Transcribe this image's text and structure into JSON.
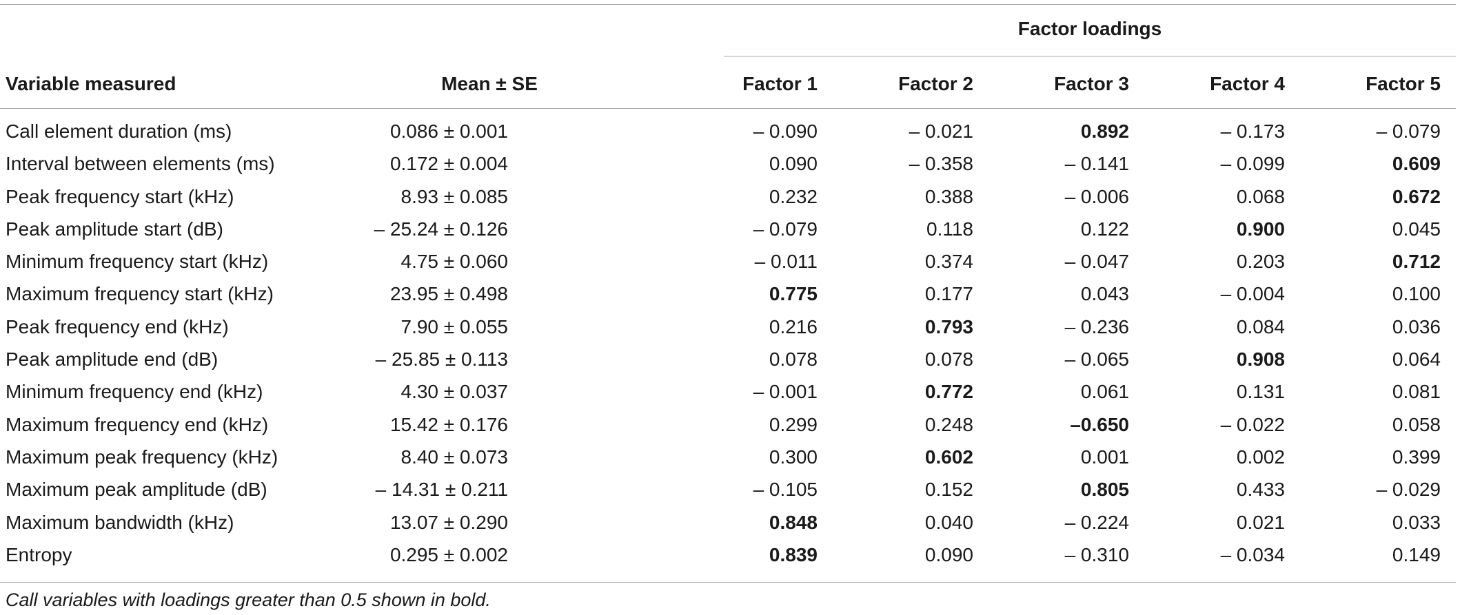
{
  "table": {
    "group_header": "Factor loadings",
    "headers": {
      "variable": "Variable measured",
      "mean": "Mean ± SE",
      "factors": [
        "Factor 1",
        "Factor 2",
        "Factor 3",
        "Factor 4",
        "Factor 5"
      ]
    },
    "rows": [
      {
        "variable": "Call element duration (ms)",
        "mean": "0.086 ± 0.001",
        "loadings": [
          "– 0.090",
          "– 0.021",
          "0.892",
          "– 0.173",
          "– 0.079"
        ],
        "bold": [
          false,
          false,
          true,
          false,
          false
        ]
      },
      {
        "variable": "Interval between elements (ms)",
        "mean": "0.172 ± 0.004",
        "loadings": [
          "0.090",
          "– 0.358",
          "– 0.141",
          "– 0.099",
          "0.609"
        ],
        "bold": [
          false,
          false,
          false,
          false,
          true
        ]
      },
      {
        "variable": "Peak frequency start (kHz)",
        "mean": "8.93 ± 0.085",
        "loadings": [
          "0.232",
          "0.388",
          "– 0.006",
          "0.068",
          "0.672"
        ],
        "bold": [
          false,
          false,
          false,
          false,
          true
        ]
      },
      {
        "variable": "Peak amplitude start (dB)",
        "mean": "– 25.24 ± 0.126",
        "loadings": [
          "– 0.079",
          "0.118",
          "0.122",
          "0.900",
          "0.045"
        ],
        "bold": [
          false,
          false,
          false,
          true,
          false
        ]
      },
      {
        "variable": "Minimum frequency start (kHz)",
        "mean": "4.75 ± 0.060",
        "loadings": [
          "– 0.011",
          "0.374",
          "– 0.047",
          "0.203",
          "0.712"
        ],
        "bold": [
          false,
          false,
          false,
          false,
          true
        ]
      },
      {
        "variable": "Maximum frequency start (kHz)",
        "mean": "23.95 ± 0.498",
        "loadings": [
          "0.775",
          "0.177",
          "0.043",
          "– 0.004",
          "0.100"
        ],
        "bold": [
          true,
          false,
          false,
          false,
          false
        ]
      },
      {
        "variable": "Peak frequency end (kHz)",
        "mean": "7.90 ± 0.055",
        "loadings": [
          "0.216",
          "0.793",
          "– 0.236",
          "0.084",
          "0.036"
        ],
        "bold": [
          false,
          true,
          false,
          false,
          false
        ]
      },
      {
        "variable": "Peak amplitude end (dB)",
        "mean": "– 25.85 ± 0.113",
        "loadings": [
          "0.078",
          "0.078",
          "– 0.065",
          "0.908",
          "0.064"
        ],
        "bold": [
          false,
          false,
          false,
          true,
          false
        ]
      },
      {
        "variable": "Minimum frequency end (kHz)",
        "mean": "4.30 ± 0.037",
        "loadings": [
          "– 0.001",
          "0.772",
          "0.061",
          "0.131",
          "0.081"
        ],
        "bold": [
          false,
          true,
          false,
          false,
          false
        ]
      },
      {
        "variable": "Maximum frequency end (kHz)",
        "mean": "15.42 ± 0.176",
        "loadings": [
          "0.299",
          "0.248",
          "–0.650",
          "– 0.022",
          "0.058"
        ],
        "bold": [
          false,
          false,
          true,
          false,
          false
        ]
      },
      {
        "variable": "Maximum peak frequency (kHz)",
        "mean": "8.40 ± 0.073",
        "loadings": [
          "0.300",
          "0.602",
          "0.001",
          "0.002",
          "0.399"
        ],
        "bold": [
          false,
          true,
          false,
          false,
          false
        ]
      },
      {
        "variable": "Maximum peak amplitude (dB)",
        "mean": "– 14.31 ± 0.211",
        "loadings": [
          "– 0.105",
          "0.152",
          "0.805",
          "0.433",
          "– 0.029"
        ],
        "bold": [
          false,
          false,
          true,
          false,
          false
        ]
      },
      {
        "variable": "Maximum bandwidth (kHz)",
        "mean": "13.07 ± 0.290",
        "loadings": [
          "0.848",
          "0.040",
          "– 0.224",
          "0.021",
          "0.033"
        ],
        "bold": [
          true,
          false,
          false,
          false,
          false
        ]
      },
      {
        "variable": "Entropy",
        "mean": "0.295 ± 0.002",
        "loadings": [
          "0.839",
          "0.090",
          "– 0.310",
          "– 0.034",
          "0.149"
        ],
        "bold": [
          true,
          false,
          false,
          false,
          false
        ]
      }
    ],
    "footnote": "Call variables with loadings greater than 0.5 shown in bold."
  }
}
